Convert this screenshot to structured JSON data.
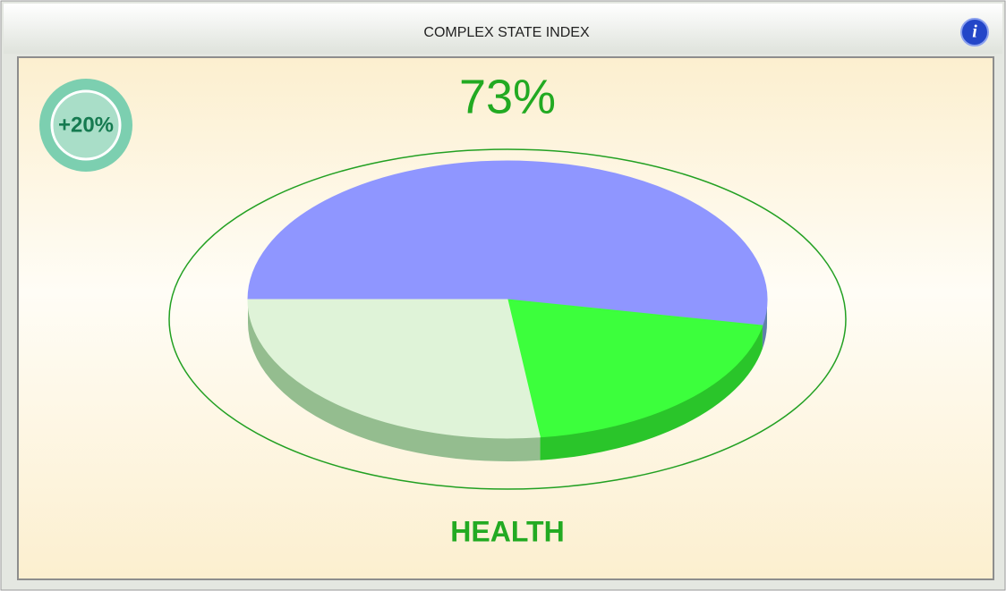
{
  "header": {
    "title": "COMPLEX STATE INDEX",
    "info": "i"
  },
  "chart_data": {
    "type": "pie",
    "title": "73%",
    "subtitle": "HEALTH",
    "annotation": "+20%",
    "values": [
      53,
      20,
      27
    ],
    "colors": [
      "#8f96ff",
      "#3cff3c",
      "#dff3d8"
    ]
  }
}
